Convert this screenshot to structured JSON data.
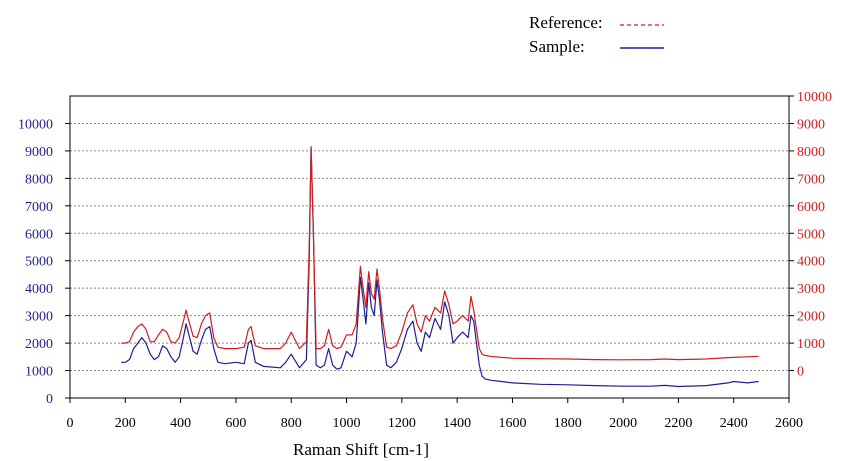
{
  "chart_data": {
    "type": "line",
    "title": "",
    "xlabel": "Raman Shift [cm-1]",
    "xlim": [
      0,
      2600
    ],
    "x_ticks": [
      0,
      200,
      400,
      600,
      800,
      1000,
      1200,
      1400,
      1600,
      1800,
      2000,
      2200,
      2400,
      2600
    ],
    "y_left": {
      "color": "#1f1f8f",
      "lim": [
        0,
        11000
      ],
      "ticks": [
        0,
        1000,
        2000,
        3000,
        4000,
        5000,
        6000,
        7000,
        8000,
        9000,
        10000
      ]
    },
    "y_right": {
      "color": "#cc1f1f",
      "lim": [
        -1000,
        10000
      ],
      "ticks": [
        0,
        1000,
        2000,
        3000,
        4000,
        5000,
        6000,
        7000,
        8000,
        9000,
        10000
      ]
    },
    "grid": true,
    "legend": {
      "placement": "top-right",
      "entries": [
        {
          "label": "Reference:",
          "color": "#cc1f1f",
          "style": "dashed"
        },
        {
          "label": "Sample:",
          "color": "#1f1f8f",
          "style": "solid"
        }
      ]
    },
    "series": [
      {
        "legend": "Sample",
        "axis": "left",
        "color": "#1f1f8f",
        "x": [
          185,
          200,
          215,
          230,
          245,
          260,
          275,
          290,
          305,
          320,
          335,
          350,
          365,
          380,
          395,
          410,
          420,
          430,
          445,
          460,
          475,
          490,
          505,
          520,
          535,
          560,
          600,
          630,
          645,
          655,
          670,
          700,
          760,
          780,
          800,
          830,
          855,
          865,
          872,
          880,
          890,
          905,
          920,
          935,
          950,
          965,
          980,
          1000,
          1020,
          1035,
          1050,
          1060,
          1070,
          1080,
          1090,
          1100,
          1110,
          1120,
          1130,
          1145,
          1160,
          1180,
          1200,
          1220,
          1240,
          1255,
          1270,
          1285,
          1300,
          1320,
          1340,
          1355,
          1370,
          1385,
          1400,
          1420,
          1440,
          1450,
          1460,
          1470,
          1480,
          1490,
          1500,
          1520,
          1560,
          1600,
          1700,
          1800,
          1900,
          2000,
          2100,
          2150,
          2200,
          2300,
          2380,
          2400,
          2450,
          2490
        ],
        "y": [
          1300,
          1300,
          1400,
          1800,
          2000,
          2200,
          2000,
          1600,
          1400,
          1500,
          1900,
          1800,
          1500,
          1300,
          1500,
          2200,
          2700,
          2300,
          1700,
          1600,
          2100,
          2500,
          2600,
          1800,
          1300,
          1250,
          1300,
          1250,
          2000,
          2100,
          1300,
          1150,
          1100,
          1300,
          1600,
          1100,
          1400,
          5000,
          9150,
          6000,
          1200,
          1100,
          1200,
          1800,
          1200,
          1050,
          1100,
          1700,
          1500,
          2000,
          4400,
          3600,
          2700,
          4200,
          3300,
          3000,
          4300,
          3500,
          2400,
          1200,
          1100,
          1300,
          1800,
          2500,
          2800,
          2000,
          1700,
          2400,
          2200,
          2900,
          2500,
          3500,
          3000,
          2000,
          2200,
          2400,
          2200,
          3000,
          2800,
          2000,
          1200,
          800,
          700,
          650,
          600,
          550,
          500,
          480,
          450,
          430,
          430,
          460,
          420,
          450,
          550,
          600,
          550,
          600
        ]
      },
      {
        "legend": "Reference",
        "axis": "right",
        "color": "#cc1f1f",
        "x": [
          185,
          200,
          215,
          230,
          245,
          260,
          275,
          290,
          305,
          320,
          335,
          350,
          365,
          380,
          395,
          410,
          420,
          430,
          445,
          460,
          475,
          490,
          505,
          520,
          535,
          560,
          600,
          630,
          645,
          655,
          670,
          700,
          760,
          780,
          800,
          830,
          855,
          865,
          872,
          880,
          890,
          905,
          920,
          935,
          950,
          965,
          980,
          1000,
          1020,
          1035,
          1050,
          1060,
          1070,
          1080,
          1090,
          1100,
          1110,
          1120,
          1130,
          1145,
          1160,
          1180,
          1200,
          1220,
          1240,
          1255,
          1270,
          1285,
          1300,
          1320,
          1340,
          1355,
          1370,
          1385,
          1400,
          1420,
          1440,
          1450,
          1460,
          1470,
          1480,
          1490,
          1500,
          1520,
          1560,
          1600,
          1700,
          1800,
          1900,
          2000,
          2100,
          2150,
          2200,
          2300,
          2380,
          2400,
          2450,
          2490
        ],
        "y": [
          1000,
          1000,
          1050,
          1400,
          1600,
          1700,
          1500,
          1050,
          1050,
          1300,
          1500,
          1400,
          1050,
          1000,
          1200,
          1800,
          2200,
          1800,
          1250,
          1200,
          1700,
          2000,
          2100,
          1200,
          850,
          800,
          800,
          850,
          1500,
          1600,
          900,
          800,
          800,
          1000,
          1400,
          800,
          1050,
          4500,
          8100,
          5000,
          800,
          800,
          900,
          1500,
          900,
          800,
          850,
          1300,
          1300,
          1700,
          3800,
          3000,
          2300,
          3600,
          2800,
          2600,
          3700,
          2900,
          1900,
          850,
          800,
          900,
          1400,
          2100,
          2400,
          1700,
          1400,
          2000,
          1800,
          2300,
          2100,
          2900,
          2400,
          1700,
          1800,
          2000,
          1800,
          2700,
          2200,
          1500,
          800,
          600,
          550,
          520,
          480,
          450,
          430,
          420,
          400,
          390,
          400,
          420,
          400,
          420,
          470,
          480,
          500,
          520
        ]
      }
    ]
  }
}
